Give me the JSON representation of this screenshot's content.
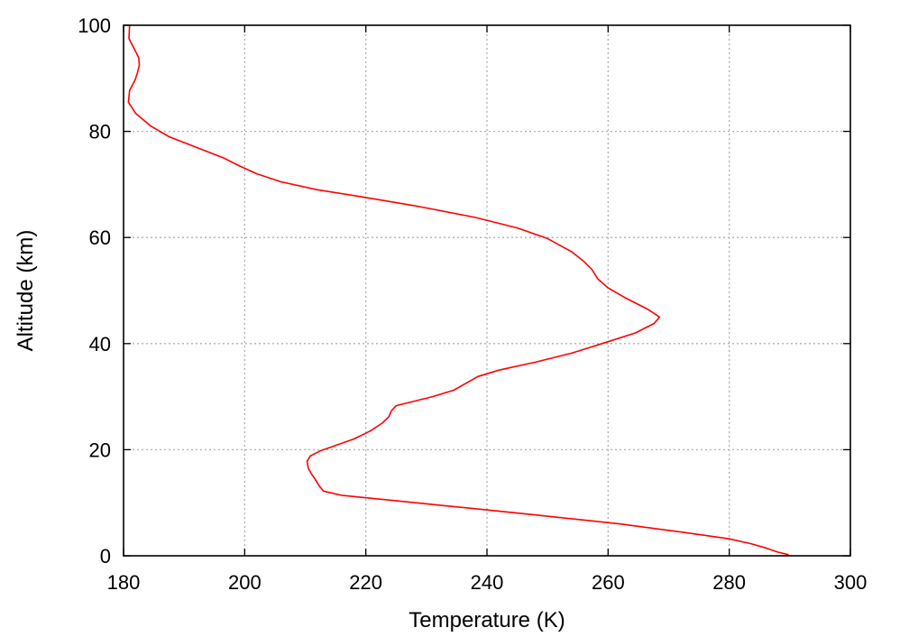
{
  "chart_data": {
    "type": "line",
    "xlabel": "Temperature (K)",
    "ylabel": "Altitude (km)",
    "xlim": [
      180,
      300
    ],
    "ylim": [
      0,
      100
    ],
    "xticks": [
      180,
      200,
      220,
      240,
      260,
      280,
      300
    ],
    "yticks": [
      0,
      20,
      40,
      60,
      80,
      100
    ],
    "grid": true,
    "series": [
      {
        "color": "#ff0000",
        "points": [
          [
            289.8,
            0.2
          ],
          [
            288.0,
            0.7
          ],
          [
            286.0,
            1.5
          ],
          [
            283.5,
            2.3
          ],
          [
            280.0,
            3.2
          ],
          [
            274.5,
            4.1
          ],
          [
            262.0,
            6.0
          ],
          [
            248.0,
            7.7
          ],
          [
            237.0,
            9.0
          ],
          [
            224.0,
            10.5
          ],
          [
            216.0,
            11.4
          ],
          [
            213.0,
            12.2
          ],
          [
            212.3,
            13.2
          ],
          [
            211.6,
            14.5
          ],
          [
            211.0,
            15.5
          ],
          [
            210.5,
            16.5
          ],
          [
            210.3,
            17.8
          ],
          [
            210.8,
            18.8
          ],
          [
            212.5,
            19.8
          ],
          [
            215.0,
            20.8
          ],
          [
            218.0,
            22.0
          ],
          [
            220.7,
            23.5
          ],
          [
            222.7,
            25.0
          ],
          [
            223.8,
            26.2
          ],
          [
            224.2,
            27.3
          ],
          [
            225.0,
            28.3
          ],
          [
            227.5,
            29.0
          ],
          [
            231.0,
            30.0
          ],
          [
            234.5,
            31.2
          ],
          [
            236.5,
            32.5
          ],
          [
            238.5,
            33.8
          ],
          [
            242.0,
            35.0
          ],
          [
            248.0,
            36.5
          ],
          [
            254.0,
            38.2
          ],
          [
            259.0,
            40.0
          ],
          [
            264.5,
            42.0
          ],
          [
            267.6,
            43.8
          ],
          [
            268.5,
            45.0
          ],
          [
            266.5,
            46.5
          ],
          [
            262.7,
            48.7
          ],
          [
            260.0,
            50.5
          ],
          [
            258.3,
            52.2
          ],
          [
            257.3,
            54.0
          ],
          [
            256.0,
            55.5
          ],
          [
            254.0,
            57.3
          ],
          [
            250.0,
            59.8
          ],
          [
            245.0,
            61.8
          ],
          [
            238.0,
            63.8
          ],
          [
            228.0,
            66.0
          ],
          [
            218.0,
            67.9
          ],
          [
            212.0,
            69.0
          ],
          [
            206.0,
            70.5
          ],
          [
            202.0,
            72.0
          ],
          [
            199.3,
            73.4
          ],
          [
            196.5,
            75.0
          ],
          [
            192.0,
            77.0
          ],
          [
            187.5,
            79.0
          ],
          [
            184.5,
            81.0
          ],
          [
            182.0,
            83.4
          ],
          [
            180.8,
            85.5
          ],
          [
            181.0,
            87.7
          ],
          [
            181.9,
            89.7
          ],
          [
            182.3,
            91.0
          ],
          [
            182.6,
            92.5
          ],
          [
            182.5,
            93.9
          ],
          [
            181.8,
            95.5
          ],
          [
            180.9,
            97.5
          ],
          [
            181.0,
            100.0
          ]
        ]
      }
    ]
  }
}
